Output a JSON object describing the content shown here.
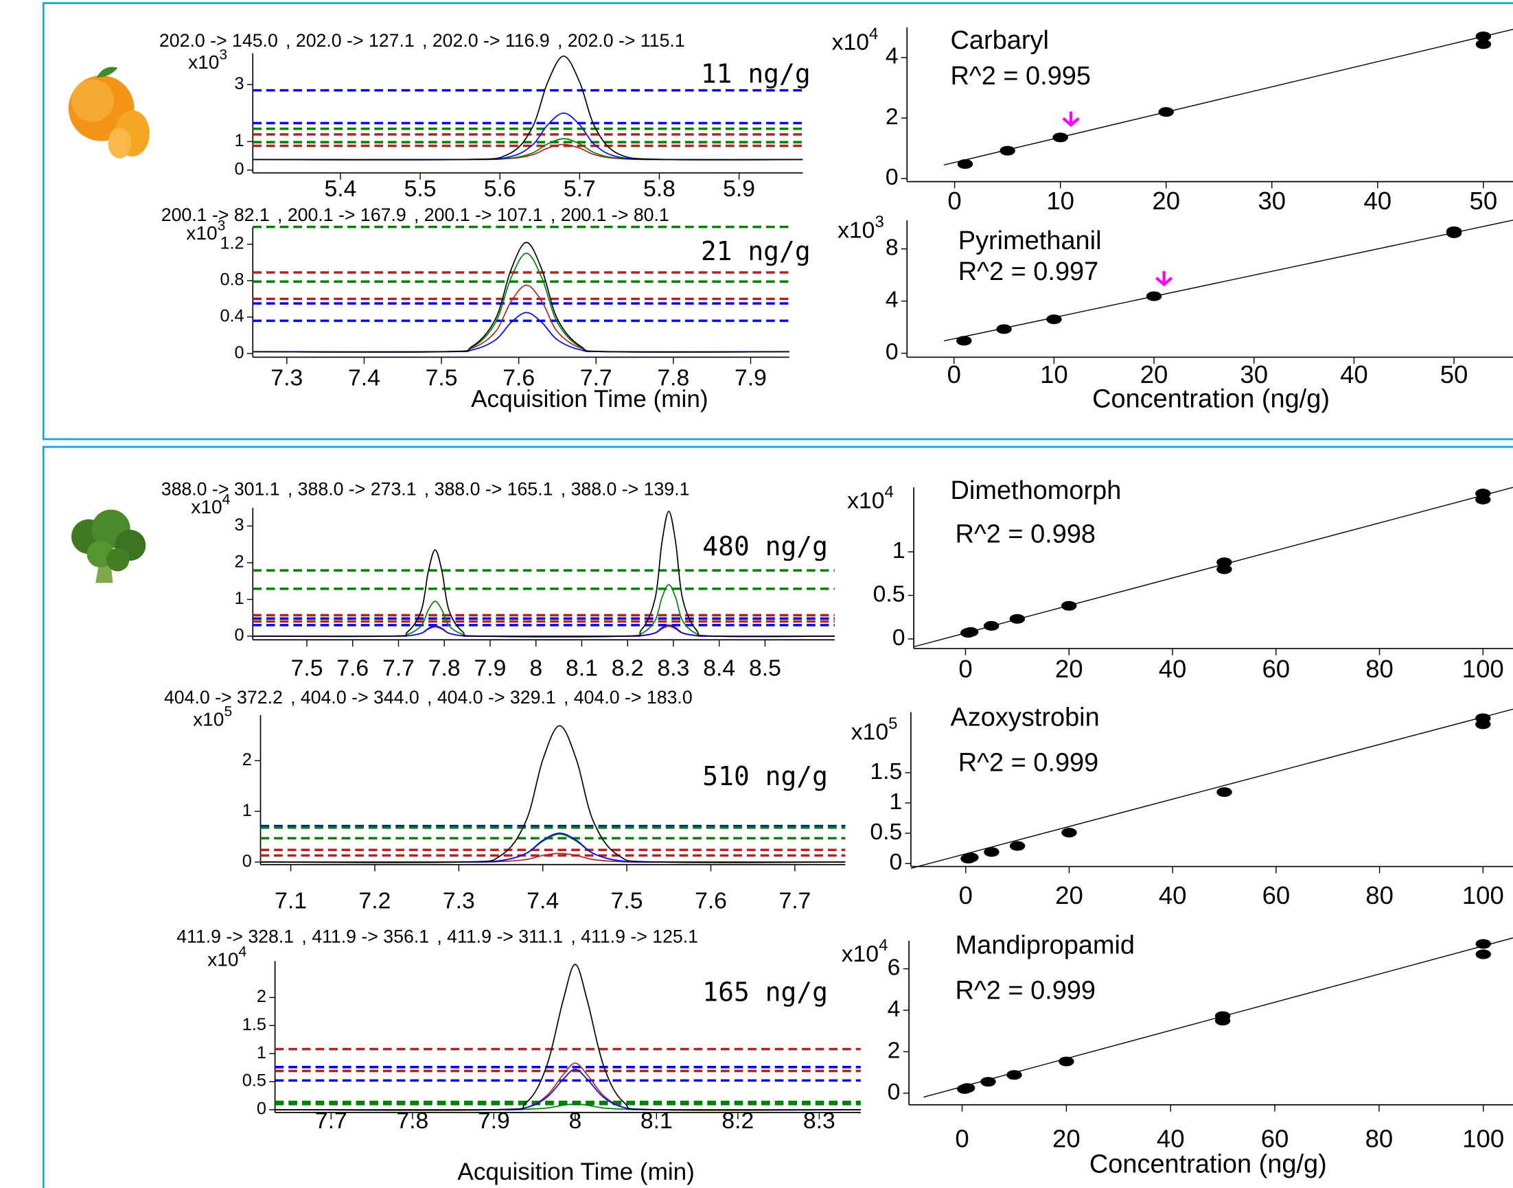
{
  "chart_data": [
    {
      "type": "line",
      "x": [
        5.29,
        5.55,
        5.61,
        5.64,
        5.66,
        5.68,
        5.7,
        5.72,
        5.75,
        5.81,
        5.98
      ],
      "series": [
        {
          "name": "202.0 -> 145.0",
          "color": "#000000",
          "values": [
            0.37,
            0.37,
            0.55,
            1.46,
            3.09,
            4.0,
            3.09,
            1.46,
            0.55,
            0.37,
            0.37
          ]
        },
        {
          "name": ", 202.0 -> 127.1",
          "color": "#0000ff",
          "values": [
            0.37,
            0.37,
            0.45,
            0.86,
            1.59,
            2.0,
            1.59,
            0.86,
            0.45,
            0.37,
            0.37
          ]
        },
        {
          "name": ", 202.0 -> 116.9",
          "color": "#008000",
          "values": [
            0.37,
            0.37,
            0.41,
            0.59,
            0.92,
            1.1,
            0.92,
            0.59,
            0.41,
            0.37,
            0.37
          ]
        },
        {
          "name": ", 202.0 -> 115.1",
          "color": "#b22222",
          "values": [
            0.37,
            0.37,
            0.4,
            0.53,
            0.77,
            0.9,
            0.77,
            0.53,
            0.4,
            0.37,
            0.37
          ]
        }
      ],
      "reference_lines": [
        {
          "value": 2.8,
          "color": "#0000ff"
        },
        {
          "value": 1.65,
          "color": "#0000ff"
        },
        {
          "value": 1.45,
          "color": "#008000"
        },
        {
          "value": 1.25,
          "color": "#b22222"
        },
        {
          "value": 0.98,
          "color": "#008000"
        },
        {
          "value": 0.85,
          "color": "#b22222"
        }
      ],
      "xlim": [
        5.29,
        5.98
      ],
      "ylim": [
        -0.1,
        4.1
      ],
      "xticks": [
        5.4,
        5.5,
        5.6,
        5.7,
        5.8,
        5.9
      ],
      "yticks": [
        0,
        1,
        3
      ],
      "multiplier": {
        "base": "x10",
        "exponent": "3"
      },
      "annotation": "11 ng/g"
    },
    {
      "type": "line",
      "x": [
        7.256,
        7.5,
        7.54,
        7.57,
        7.59,
        7.61,
        7.63,
        7.65,
        7.68,
        7.72,
        7.95
      ],
      "series": [
        {
          "name": "200.1 -> 82.1",
          "color": "#000000",
          "values": [
            0.02,
            0.02,
            0.08,
            0.38,
            0.92,
            1.22,
            0.92,
            0.38,
            0.08,
            0.02,
            0.02
          ]
        },
        {
          "name": ", 200.1 -> 167.9",
          "color": "#0000ff",
          "values": [
            0.02,
            0.02,
            0.04,
            0.15,
            0.34,
            0.45,
            0.34,
            0.15,
            0.04,
            0.02,
            0.02
          ]
        },
        {
          "name": ", 200.1 -> 107.1",
          "color": "#008000",
          "values": [
            0.02,
            0.02,
            0.07,
            0.34,
            0.83,
            1.1,
            0.83,
            0.34,
            0.07,
            0.02,
            0.02
          ]
        },
        {
          "name": ", 200.1 -> 80.1",
          "color": "#b22222",
          "values": [
            0.02,
            0.02,
            0.06,
            0.24,
            0.57,
            0.75,
            0.57,
            0.24,
            0.06,
            0.02,
            0.02
          ]
        }
      ],
      "reference_lines": [
        {
          "value": 1.39,
          "color": "#008000"
        },
        {
          "value": 0.89,
          "color": "#b22222"
        },
        {
          "value": 0.79,
          "color": "#008000"
        },
        {
          "value": 0.6,
          "color": "#b22222"
        },
        {
          "value": 0.55,
          "color": "#0000ff"
        },
        {
          "value": 0.36,
          "color": "#0000ff"
        }
      ],
      "xlim": [
        7.256,
        7.95
      ],
      "ylim": [
        -0.04,
        1.39
      ],
      "xticks": [
        7.3,
        7.4,
        7.5,
        7.6,
        7.7,
        7.8,
        7.9
      ],
      "yticks": [
        0,
        0.4,
        0.8,
        1.2
      ],
      "multiplier": {
        "base": "x10",
        "exponent": "3"
      },
      "annotation": "21 ng/g",
      "xlabel": "Acquisition Time (min)"
    },
    {
      "type": "scatter",
      "title": "Carbaryl",
      "annotation": "R^2 = 0.995",
      "color": "#000000",
      "x": [
        1,
        5,
        10,
        20,
        50,
        50
      ],
      "values": [
        0.48,
        0.92,
        1.36,
        2.2,
        4.44,
        4.7
      ],
      "trend_line": {
        "x": [
          -1,
          52.8
        ],
        "values": [
          0.45,
          4.93
        ]
      },
      "highlight": {
        "x": 11,
        "color": "#ff00ff"
      },
      "xlim": [
        -4.5,
        52.8
      ],
      "ylim": [
        -0.1,
        5.0
      ],
      "xticks": [
        0,
        10,
        20,
        30,
        40,
        50
      ],
      "yticks": [
        0,
        2,
        4
      ],
      "multiplier": {
        "base": "x10",
        "exponent": "4"
      }
    },
    {
      "type": "scatter",
      "title": "Pyrimethanil",
      "annotation": "R^2 = 0.997",
      "color": "#000000",
      "x": [
        1,
        5,
        10,
        20,
        50,
        50
      ],
      "values": [
        0.96,
        1.85,
        2.6,
        4.37,
        9.2,
        9.35
      ],
      "trend_line": {
        "x": [
          -1,
          55.9
        ],
        "values": [
          0.95,
          10.2
        ]
      },
      "highlight": {
        "x": 21,
        "color": "#ff00ff"
      },
      "xlim": [
        -4.7,
        55.9
      ],
      "ylim": [
        -0.3,
        10.2
      ],
      "xticks": [
        0,
        10,
        20,
        30,
        40,
        50
      ],
      "yticks": [
        0,
        4,
        8
      ],
      "multiplier": {
        "base": "x10",
        "exponent": "3"
      },
      "xlabel": "Concentration (ng/g)"
    },
    {
      "type": "line",
      "x": [
        7.382,
        7.68,
        7.72,
        7.75,
        7.765,
        7.78,
        7.795,
        7.81,
        7.84,
        7.88,
        8.19,
        8.23,
        8.26,
        8.275,
        8.29,
        8.305,
        8.32,
        8.35,
        8.39,
        8.652
      ],
      "series": [
        {
          "name": "388.0 -> 301.1",
          "color": "#000000",
          "values": [
            0,
            0,
            0.12,
            0.71,
            1.76,
            2.35,
            1.76,
            0.71,
            0.12,
            0,
            0,
            0.17,
            1.02,
            2.55,
            3.4,
            2.55,
            1.02,
            0.17,
            0,
            0
          ]
        },
        {
          "name": ", 388.0 -> 273.1",
          "color": "#0000ff",
          "values": [
            0,
            0,
            0.01,
            0.08,
            0.21,
            0.28,
            0.21,
            0.08,
            0.01,
            0,
            0,
            0.02,
            0.09,
            0.23,
            0.3,
            0.23,
            0.09,
            0.02,
            0,
            0
          ]
        },
        {
          "name": ", 388.0 -> 165.1",
          "color": "#008000",
          "values": [
            0,
            0,
            0.05,
            0.29,
            0.71,
            0.95,
            0.71,
            0.29,
            0.05,
            0,
            0,
            0.07,
            0.42,
            1.05,
            1.4,
            1.05,
            0.42,
            0.07,
            0,
            0
          ]
        },
        {
          "name": ", 388.0 -> 139.1",
          "color": "#b22222",
          "values": [
            0,
            0,
            0.01,
            0.08,
            0.19,
            0.25,
            0.19,
            0.08,
            0.01,
            0,
            0,
            0.01,
            0.08,
            0.2,
            0.27,
            0.2,
            0.08,
            0.01,
            0,
            0
          ]
        }
      ],
      "reference_lines": [
        {
          "value": 1.79,
          "color": "#008000"
        },
        {
          "value": 1.29,
          "color": "#008000"
        },
        {
          "value": 0.57,
          "color": "#b22222"
        },
        {
          "value": 0.48,
          "color": "#0000ff"
        },
        {
          "value": 0.4,
          "color": "#b22222"
        },
        {
          "value": 0.3,
          "color": "#0000ff"
        }
      ],
      "xlim": [
        7.382,
        8.652
      ],
      "ylim": [
        -0.1,
        3.5
      ],
      "xticks": [
        7.5,
        7.6,
        7.7,
        7.8,
        7.9,
        8,
        8.1,
        8.2,
        8.3,
        8.4,
        8.5
      ],
      "yticks": [
        0,
        1,
        2,
        3
      ],
      "multiplier": {
        "base": "x10",
        "exponent": "4"
      },
      "annotation": "480 ng/g"
    },
    {
      "type": "line",
      "x": [
        7.064,
        7.3,
        7.35,
        7.38,
        7.4,
        7.42,
        7.44,
        7.46,
        7.49,
        7.54,
        7.76
      ],
      "series": [
        {
          "name": "404.0 -> 372.2",
          "color": "#000000",
          "values": [
            0,
            0,
            0.13,
            0.81,
            2.02,
            2.69,
            2.02,
            0.81,
            0.13,
            0,
            0
          ]
        },
        {
          "name": ", 404.0 -> 344.0",
          "color": "#0000ff",
          "values": [
            0,
            0,
            0.03,
            0.17,
            0.43,
            0.57,
            0.43,
            0.17,
            0.03,
            0,
            0
          ]
        },
        {
          "name": ", 404.0 -> 329.1",
          "color": "#008000",
          "values": [
            0,
            0,
            0.03,
            0.17,
            0.41,
            0.55,
            0.41,
            0.17,
            0.03,
            0,
            0
          ]
        },
        {
          "name": ", 404.0 -> 183.0",
          "color": "#b22222",
          "values": [
            0,
            0,
            0.01,
            0.05,
            0.13,
            0.17,
            0.13,
            0.05,
            0.01,
            0,
            0
          ]
        }
      ],
      "reference_lines": [
        {
          "value": 0.71,
          "color": "#0000ff"
        },
        {
          "value": 0.68,
          "color": "#008000"
        },
        {
          "value": 0.47,
          "color": "#008000"
        },
        {
          "value": 0.24,
          "color": "#b22222"
        },
        {
          "value": 0.13,
          "color": "#b22222"
        }
      ],
      "xlim": [
        7.064,
        7.76
      ],
      "ylim": [
        -0.05,
        2.9
      ],
      "xticks": [
        7.1,
        7.2,
        7.3,
        7.4,
        7.5,
        7.6,
        7.7
      ],
      "yticks": [
        0,
        1,
        2
      ],
      "multiplier": {
        "base": "x10",
        "exponent": "5"
      },
      "annotation": "510 ng/g"
    },
    {
      "type": "line",
      "x": [
        7.631,
        7.9,
        7.94,
        7.965,
        7.985,
        8.0,
        8.015,
        8.035,
        8.06,
        8.1,
        8.351
      ],
      "series": [
        {
          "name": "411.9 -> 328.1",
          "color": "#000000",
          "values": [
            0,
            0,
            0.13,
            0.78,
            1.94,
            2.59,
            1.94,
            0.78,
            0.13,
            0,
            0
          ]
        },
        {
          "name": ", 411.9 -> 356.1",
          "color": "#0000ff",
          "values": [
            0,
            0,
            0.04,
            0.22,
            0.54,
            0.72,
            0.54,
            0.22,
            0.04,
            0,
            0
          ]
        },
        {
          "name": ", 411.9 -> 311.1",
          "color": "#008000",
          "values": [
            0,
            0,
            0.01,
            0.03,
            0.08,
            0.1,
            0.08,
            0.03,
            0.01,
            0,
            0
          ]
        },
        {
          "name": ", 411.9 -> 125.1",
          "color": "#b22222",
          "values": [
            0,
            0,
            0.04,
            0.25,
            0.62,
            0.83,
            0.62,
            0.25,
            0.04,
            0,
            0
          ]
        }
      ],
      "reference_lines": [
        {
          "value": 1.08,
          "color": "#b22222"
        },
        {
          "value": 0.76,
          "color": "#0000ff"
        },
        {
          "value": 0.69,
          "color": "#b22222"
        },
        {
          "value": 0.52,
          "color": "#0000ff"
        },
        {
          "value": 0.14,
          "color": "#008000"
        },
        {
          "value": 0.1,
          "color": "#008000"
        }
      ],
      "xlim": [
        7.631,
        8.351
      ],
      "ylim": [
        -0.05,
        2.65
      ],
      "xticks": [
        7.7,
        7.8,
        7.9,
        8,
        8.1,
        8.2,
        8.3
      ],
      "yticks": [
        0,
        0.5,
        1,
        1.5,
        2
      ],
      "multiplier": {
        "base": "x10",
        "exponent": "4"
      },
      "annotation": "165 ng/g",
      "xlabel": "Acquisition Time (min)"
    },
    {
      "type": "scatter",
      "title": "Dimethomorph",
      "annotation": "R^2 = 0.998",
      "color": "#000000",
      "x": [
        0.5,
        1,
        5,
        10,
        20,
        50,
        50,
        100,
        100
      ],
      "values": [
        0.07,
        0.08,
        0.15,
        0.23,
        0.38,
        0.8,
        0.88,
        1.6,
        1.67
      ],
      "trend_line": {
        "x": [
          -10,
          105.8
        ],
        "values": [
          -0.09,
          1.74
        ]
      },
      "xlim": [
        -10,
        105.8
      ],
      "ylim": [
        -0.11,
        1.74
      ],
      "xticks": [
        0,
        20,
        40,
        60,
        80,
        100
      ],
      "yticks": [
        0,
        0.5,
        1
      ],
      "multiplier": {
        "base": "x10",
        "exponent": "4"
      }
    },
    {
      "type": "scatter",
      "title": "Azoxystrobin",
      "annotation": "R^2 = 0.999",
      "color": "#000000",
      "x": [
        0.5,
        1,
        5,
        10,
        20,
        50,
        100,
        100
      ],
      "values": [
        0.08,
        0.1,
        0.19,
        0.29,
        0.51,
        1.18,
        2.3,
        2.4
      ],
      "trend_line": {
        "x": [
          -10.6,
          105.8
        ],
        "values": [
          -0.08,
          2.55
        ]
      },
      "xlim": [
        -10.6,
        105.8
      ],
      "ylim": [
        -0.05,
        2.5
      ],
      "xticks": [
        0,
        20,
        40,
        60,
        80,
        100
      ],
      "yticks": [
        0,
        0.5,
        1,
        1.5
      ],
      "multiplier": {
        "base": "x10",
        "exponent": "5"
      }
    },
    {
      "type": "scatter",
      "title": "Mandipropamid",
      "annotation": "R^2 = 0.999",
      "color": "#000000",
      "x": [
        0.5,
        1,
        5,
        10,
        20,
        50,
        50,
        100,
        100
      ],
      "values": [
        0.2,
        0.25,
        0.55,
        0.88,
        1.53,
        3.5,
        3.72,
        6.7,
        7.2
      ],
      "trend_line": {
        "x": [
          -7.4,
          105.7
        ],
        "values": [
          -0.19,
          7.49
        ]
      },
      "xlim": [
        -10.2,
        105.7
      ],
      "ylim": [
        -0.56,
        7.35
      ],
      "xticks": [
        0,
        20,
        40,
        60,
        80,
        100
      ],
      "yticks": [
        0,
        2,
        4,
        6
      ],
      "multiplier": {
        "base": "x10",
        "exponent": "4"
      },
      "xlabel": "Concentration (ng/g)"
    }
  ]
}
